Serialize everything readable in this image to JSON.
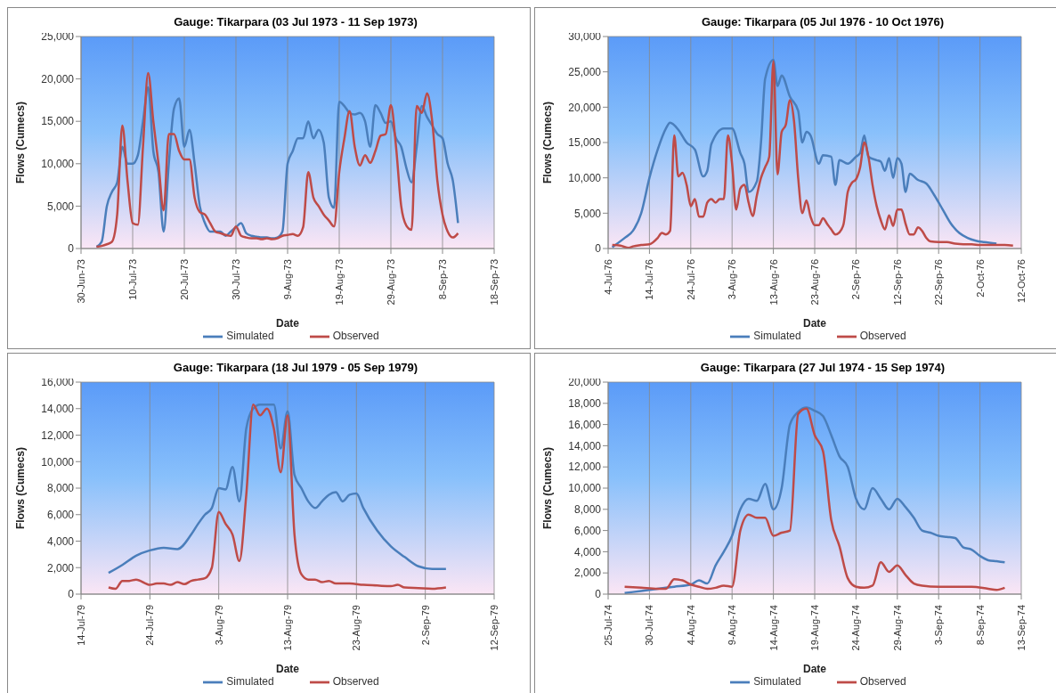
{
  "chart_data": [
    {
      "type": "line",
      "title": "Gauge: Tikarpara (03 Jul 1973 - 11 Sep 1973)",
      "xlabel": "Date",
      "ylabel": "Flows (Cumecs)",
      "grid": true,
      "legend": "bottom",
      "marker": "none",
      "line_style": "solid",
      "xlim": [
        "1973-06-30",
        "1973-09-18"
      ],
      "xticks": [
        {
          "value": "1973-06-30",
          "label": "30-Jun-73"
        },
        {
          "value": "1973-07-10",
          "label": "10-Jul-73"
        },
        {
          "value": "1973-07-20",
          "label": "20-Jul-73"
        },
        {
          "value": "1973-07-30",
          "label": "30-Jul-73"
        },
        {
          "value": "1973-08-09",
          "label": "9-Aug-73"
        },
        {
          "value": "1973-08-19",
          "label": "19-Aug-73"
        },
        {
          "value": "1973-08-29",
          "label": "29-Aug-73"
        },
        {
          "value": "1973-09-08",
          "label": "8-Sep-73"
        },
        {
          "value": "1973-09-18",
          "label": "18-Sep-73"
        }
      ],
      "ylim": [
        0,
        25000
      ],
      "yticks": [
        {
          "value": 0,
          "label": "0"
        },
        {
          "value": 5000,
          "label": "5,000"
        },
        {
          "value": 10000,
          "label": "10,000"
        },
        {
          "value": 15000,
          "label": "15,000"
        },
        {
          "value": 20000,
          "label": "20,000"
        },
        {
          "value": 25000,
          "label": "25,000"
        }
      ],
      "series": [
        {
          "name": "Simulated",
          "color": "#4a7ebb",
          "x": [
            "1973-07-03",
            "1973-07-04",
            "1973-07-05",
            "1973-07-06",
            "1973-07-07",
            "1973-07-08",
            "1973-07-09",
            "1973-07-10",
            "1973-07-11",
            "1973-07-12",
            "1973-07-13",
            "1973-07-14",
            "1973-07-15",
            "1973-07-16",
            "1973-07-17",
            "1973-07-18",
            "1973-07-19",
            "1973-07-20",
            "1973-07-21",
            "1973-07-22",
            "1973-07-23",
            "1973-07-24",
            "1973-07-25",
            "1973-07-26",
            "1973-07-27",
            "1973-07-28",
            "1973-07-29",
            "1973-07-30",
            "1973-07-31",
            "1973-08-01",
            "1973-08-02",
            "1973-08-03",
            "1973-08-04",
            "1973-08-05",
            "1973-08-06",
            "1973-08-07",
            "1973-08-08",
            "1973-08-09",
            "1973-08-10",
            "1973-08-11",
            "1973-08-12",
            "1973-08-13",
            "1973-08-14",
            "1973-08-15",
            "1973-08-16",
            "1973-08-17",
            "1973-08-18",
            "1973-08-19",
            "1973-08-20",
            "1973-08-21",
            "1973-08-22",
            "1973-08-23",
            "1973-08-24",
            "1973-08-25",
            "1973-08-26",
            "1973-08-27",
            "1973-08-28",
            "1973-08-29",
            "1973-08-30",
            "1973-08-31",
            "1973-09-01",
            "1973-09-02",
            "1973-09-03",
            "1973-09-04",
            "1973-09-05",
            "1973-09-06",
            "1973-09-07",
            "1973-09-08",
            "1973-09-09",
            "1973-09-10",
            "1973-09-11"
          ],
          "values": [
            200,
            800,
            5000,
            6700,
            7800,
            12000,
            10000,
            10000,
            11000,
            15000,
            19000,
            11500,
            9000,
            2000,
            10000,
            16500,
            17700,
            12000,
            14000,
            10000,
            5000,
            3000,
            2000,
            2000,
            2000,
            1500,
            2000,
            2500,
            3000,
            1800,
            1500,
            1400,
            1300,
            1300,
            1200,
            1300,
            2000,
            10000,
            11500,
            13000,
            13000,
            15000,
            13000,
            14000,
            12500,
            6000,
            4800,
            17300,
            16800,
            16000,
            15800,
            16000,
            15000,
            12000,
            16900,
            16000,
            14800,
            15000,
            13000,
            12000,
            9500,
            7800,
            12000,
            16800,
            15500,
            14500,
            13500,
            13000,
            10000,
            8000,
            3000
          ]
        },
        {
          "name": "Observed",
          "color": "#be4b48",
          "x": [
            "1973-07-03",
            "1973-07-04",
            "1973-07-05",
            "1973-07-06",
            "1973-07-07",
            "1973-07-08",
            "1973-07-09",
            "1973-07-10",
            "1973-07-11",
            "1973-07-12",
            "1973-07-13",
            "1973-07-14",
            "1973-07-15",
            "1973-07-16",
            "1973-07-17",
            "1973-07-18",
            "1973-07-19",
            "1973-07-20",
            "1973-07-21",
            "1973-07-22",
            "1973-07-23",
            "1973-07-24",
            "1973-07-25",
            "1973-07-26",
            "1973-07-27",
            "1973-07-28",
            "1973-07-29",
            "1973-07-30",
            "1973-07-31",
            "1973-08-01",
            "1973-08-02",
            "1973-08-03",
            "1973-08-04",
            "1973-08-05",
            "1973-08-06",
            "1973-08-07",
            "1973-08-08",
            "1973-08-09",
            "1973-08-10",
            "1973-08-11",
            "1973-08-12",
            "1973-08-13",
            "1973-08-14",
            "1973-08-15",
            "1973-08-16",
            "1973-08-17",
            "1973-08-18",
            "1973-08-19",
            "1973-08-20",
            "1973-08-21",
            "1973-08-22",
            "1973-08-23",
            "1973-08-24",
            "1973-08-25",
            "1973-08-26",
            "1973-08-27",
            "1973-08-28",
            "1973-08-29",
            "1973-08-30",
            "1973-08-31",
            "1973-09-01",
            "1973-09-02",
            "1973-09-03",
            "1973-09-04",
            "1973-09-05",
            "1973-09-06",
            "1973-09-07",
            "1973-09-08",
            "1973-09-09",
            "1973-09-10",
            "1973-09-11"
          ],
          "values": [
            200,
            300,
            500,
            800,
            4000,
            14500,
            8000,
            3000,
            2800,
            12000,
            20700,
            15000,
            10000,
            4500,
            13500,
            13500,
            11500,
            10500,
            10500,
            6000,
            4300,
            4000,
            3000,
            2000,
            1800,
            1600,
            1500,
            2600,
            1500,
            1300,
            1200,
            1200,
            1100,
            1200,
            1100,
            1200,
            1500,
            1600,
            1700,
            1500,
            2500,
            9000,
            6000,
            5000,
            4000,
            3300,
            2600,
            9000,
            13000,
            16200,
            12000,
            9800,
            11000,
            10100,
            11500,
            13300,
            13500,
            16900,
            12000,
            5000,
            2700,
            2200,
            16800,
            16000,
            18300,
            15000,
            8000,
            4000,
            2000,
            1300,
            1800
          ]
        }
      ]
    },
    {
      "type": "line",
      "title": "Gauge: Tikarpara (05 Jul 1976 - 10 Oct 1976)",
      "xlabel": "Date",
      "ylabel": "Flows (Cumecs)",
      "grid": true,
      "legend": "bottom",
      "marker": "none",
      "line_style": "solid",
      "xlim": [
        "1976-07-04",
        "1976-10-12"
      ],
      "xticks": [
        {
          "value": "1976-07-04",
          "label": "4-Jul-76"
        },
        {
          "value": "1976-07-14",
          "label": "14-Jul-76"
        },
        {
          "value": "1976-07-24",
          "label": "24-Jul-76"
        },
        {
          "value": "1976-08-03",
          "label": "3-Aug-76"
        },
        {
          "value": "1976-08-13",
          "label": "13-Aug-76"
        },
        {
          "value": "1976-08-23",
          "label": "23-Aug-76"
        },
        {
          "value": "1976-09-02",
          "label": "2-Sep-76"
        },
        {
          "value": "1976-09-12",
          "label": "12-Sep-76"
        },
        {
          "value": "1976-09-22",
          "label": "22-Sep-76"
        },
        {
          "value": "1976-10-02",
          "label": "2-Oct-76"
        },
        {
          "value": "1976-10-12",
          "label": "12-Oct-76"
        }
      ],
      "ylim": [
        0,
        30000
      ],
      "yticks": [
        {
          "value": 0,
          "label": "0"
        },
        {
          "value": 5000,
          "label": "5,000"
        },
        {
          "value": 10000,
          "label": "10,000"
        },
        {
          "value": 15000,
          "label": "15,000"
        },
        {
          "value": 20000,
          "label": "20,000"
        },
        {
          "value": 25000,
          "label": "25,000"
        },
        {
          "value": 30000,
          "label": "30,000"
        }
      ],
      "series": [
        {
          "name": "Simulated",
          "color": "#4a7ebb",
          "x": [
            "1976-07-05",
            "1976-07-08",
            "1976-07-10",
            "1976-07-12",
            "1976-07-14",
            "1976-07-16",
            "1976-07-18",
            "1976-07-19",
            "1976-07-21",
            "1976-07-23",
            "1976-07-25",
            "1976-07-27",
            "1976-07-28",
            "1976-07-29",
            "1976-08-01",
            "1976-08-03",
            "1976-08-05",
            "1976-08-06",
            "1976-08-07",
            "1976-08-09",
            "1976-08-10",
            "1976-08-11",
            "1976-08-13",
            "1976-08-14",
            "1976-08-15",
            "1976-08-17",
            "1976-08-19",
            "1976-08-20",
            "1976-08-21",
            "1976-08-22",
            "1976-08-24",
            "1976-08-25",
            "1976-08-27",
            "1976-08-28",
            "1976-08-29",
            "1976-08-31",
            "1976-09-02",
            "1976-09-03",
            "1976-09-04",
            "1976-09-05",
            "1976-09-07",
            "1976-09-08",
            "1976-09-09",
            "1976-09-10",
            "1976-09-11",
            "1976-09-12",
            "1976-09-13",
            "1976-09-14",
            "1976-09-15",
            "1976-09-17",
            "1976-09-19",
            "1976-09-21",
            "1976-09-23",
            "1976-09-25",
            "1976-09-27",
            "1976-09-29",
            "1976-10-01",
            "1976-10-03",
            "1976-10-06"
          ],
          "values": [
            200,
            1500,
            2500,
            5000,
            10000,
            14000,
            17000,
            17800,
            16800,
            15000,
            14000,
            10200,
            11000,
            14800,
            17000,
            17000,
            13500,
            12000,
            8000,
            9500,
            15000,
            24000,
            26700,
            23000,
            24500,
            21500,
            19500,
            15000,
            16500,
            16000,
            12000,
            13200,
            13000,
            9000,
            12500,
            12000,
            13000,
            13500,
            16000,
            13000,
            12500,
            12300,
            11000,
            12800,
            10000,
            12800,
            12000,
            8000,
            10600,
            9700,
            9200,
            7500,
            5500,
            3500,
            2200,
            1500,
            1100,
            900,
            700
          ]
        },
        {
          "name": "Observed",
          "color": "#be4b48",
          "x": [
            "1976-07-05",
            "1976-07-07",
            "1976-07-09",
            "1976-07-10",
            "1976-07-12",
            "1976-07-14",
            "1976-07-16",
            "1976-07-17",
            "1976-07-18",
            "1976-07-19",
            "1976-07-20",
            "1976-07-21",
            "1976-07-22",
            "1976-07-23",
            "1976-07-24",
            "1976-07-25",
            "1976-07-26",
            "1976-07-27",
            "1976-07-28",
            "1976-07-29",
            "1976-07-30",
            "1976-07-31",
            "1976-08-01",
            "1976-08-02",
            "1976-08-03",
            "1976-08-04",
            "1976-08-05",
            "1976-08-06",
            "1976-08-07",
            "1976-08-08",
            "1976-08-09",
            "1976-08-10",
            "1976-08-11",
            "1976-08-12",
            "1976-08-13",
            "1976-08-14",
            "1976-08-15",
            "1976-08-16",
            "1976-08-17",
            "1976-08-18",
            "1976-08-19",
            "1976-08-20",
            "1976-08-21",
            "1976-08-22",
            "1976-08-23",
            "1976-08-24",
            "1976-08-25",
            "1976-08-26",
            "1976-08-27",
            "1976-08-28",
            "1976-08-29",
            "1976-08-30",
            "1976-08-31",
            "1976-09-01",
            "1976-09-02",
            "1976-09-03",
            "1976-09-04",
            "1976-09-05",
            "1976-09-06",
            "1976-09-07",
            "1976-09-08",
            "1976-09-09",
            "1976-09-10",
            "1976-09-11",
            "1976-09-12",
            "1976-09-13",
            "1976-09-14",
            "1976-09-15",
            "1976-09-16",
            "1976-09-17",
            "1976-09-18",
            "1976-09-19",
            "1976-09-20",
            "1976-09-22",
            "1976-09-24",
            "1976-09-26",
            "1976-09-28",
            "1976-09-30",
            "1976-10-02",
            "1976-10-04",
            "1976-10-06",
            "1976-10-08",
            "1976-10-10"
          ],
          "values": [
            500,
            400,
            100,
            300,
            500,
            600,
            1500,
            2200,
            2000,
            2500,
            16000,
            10200,
            10700,
            9000,
            6000,
            7000,
            4500,
            4500,
            6500,
            7000,
            6500,
            7000,
            7000,
            16000,
            12000,
            5500,
            8500,
            9000,
            6500,
            4600,
            7500,
            10000,
            11500,
            13000,
            26500,
            10500,
            16500,
            17500,
            21000,
            18000,
            10000,
            5000,
            6800,
            4500,
            3300,
            3300,
            4300,
            3500,
            2700,
            2000,
            2300,
            3500,
            8000,
            9300,
            9800,
            11500,
            15000,
            13000,
            9000,
            6000,
            4000,
            2700,
            4700,
            3200,
            5500,
            5500,
            3500,
            2000,
            2000,
            3000,
            2500,
            1500,
            1000,
            900,
            900,
            700,
            600,
            600,
            500,
            500,
            500,
            500,
            400
          ]
        }
      ]
    },
    {
      "type": "line",
      "title": "Gauge: Tikarpara (18 Jul 1979 - 05 Sep 1979)",
      "xlabel": "Date",
      "ylabel": "Flows (Cumecs)",
      "grid": true,
      "legend": "bottom",
      "marker": "none",
      "line_style": "solid",
      "xlim": [
        "1979-07-14",
        "1979-09-12"
      ],
      "xticks": [
        {
          "value": "1979-07-14",
          "label": "14-Jul-79"
        },
        {
          "value": "1979-07-24",
          "label": "24-Jul-79"
        },
        {
          "value": "1979-08-03",
          "label": "3-Aug-79"
        },
        {
          "value": "1979-08-13",
          "label": "13-Aug-79"
        },
        {
          "value": "1979-08-23",
          "label": "23-Aug-79"
        },
        {
          "value": "1979-09-02",
          "label": "2-Sep-79"
        },
        {
          "value": "1979-09-12",
          "label": "12-Sep-79"
        }
      ],
      "ylim": [
        0,
        16000
      ],
      "yticks": [
        {
          "value": 0,
          "label": "0"
        },
        {
          "value": 2000,
          "label": "2,000"
        },
        {
          "value": 4000,
          "label": "4,000"
        },
        {
          "value": 6000,
          "label": "6,000"
        },
        {
          "value": 8000,
          "label": "8,000"
        },
        {
          "value": 10000,
          "label": "10,000"
        },
        {
          "value": 12000,
          "label": "12,000"
        },
        {
          "value": 14000,
          "label": "14,000"
        },
        {
          "value": 16000,
          "label": "16,000"
        }
      ],
      "series": [
        {
          "name": "Simulated",
          "color": "#4a7ebb",
          "x": [
            "1979-07-18",
            "1979-07-20",
            "1979-07-22",
            "1979-07-24",
            "1979-07-26",
            "1979-07-28",
            "1979-07-30",
            "1979-07-31",
            "1979-08-01",
            "1979-08-02",
            "1979-08-03",
            "1979-08-04",
            "1979-08-05",
            "1979-08-06",
            "1979-08-07",
            "1979-08-08",
            "1979-08-09",
            "1979-08-10",
            "1979-08-11",
            "1979-08-12",
            "1979-08-13",
            "1979-08-14",
            "1979-08-15",
            "1979-08-16",
            "1979-08-17",
            "1979-08-18",
            "1979-08-19",
            "1979-08-20",
            "1979-08-21",
            "1979-08-22",
            "1979-08-23",
            "1979-08-24",
            "1979-08-26",
            "1979-08-28",
            "1979-08-30",
            "1979-09-01",
            "1979-09-03",
            "1979-09-05"
          ],
          "values": [
            1600,
            2200,
            2900,
            3300,
            3500,
            3400,
            4500,
            5300,
            6000,
            6500,
            8000,
            7900,
            9600,
            7000,
            12500,
            14000,
            14300,
            14300,
            14300,
            11000,
            13800,
            9000,
            8000,
            7000,
            6500,
            7000,
            7500,
            7700,
            7000,
            7500,
            7600,
            6500,
            4800,
            3600,
            2800,
            2100,
            1900,
            1900
          ]
        },
        {
          "name": "Observed",
          "color": "#be4b48",
          "x": [
            "1979-07-18",
            "1979-07-19",
            "1979-07-20",
            "1979-07-21",
            "1979-07-22",
            "1979-07-24",
            "1979-07-25",
            "1979-07-26",
            "1979-07-27",
            "1979-07-28",
            "1979-07-29",
            "1979-07-30",
            "1979-07-31",
            "1979-08-01",
            "1979-08-02",
            "1979-08-03",
            "1979-08-04",
            "1979-08-05",
            "1979-08-06",
            "1979-08-07",
            "1979-08-08",
            "1979-08-09",
            "1979-08-10",
            "1979-08-11",
            "1979-08-12",
            "1979-08-13",
            "1979-08-14",
            "1979-08-15",
            "1979-08-16",
            "1979-08-17",
            "1979-08-18",
            "1979-08-19",
            "1979-08-20",
            "1979-08-22",
            "1979-08-24",
            "1979-08-26",
            "1979-08-28",
            "1979-08-29",
            "1979-08-30",
            "1979-09-01",
            "1979-09-03",
            "1979-09-05"
          ],
          "values": [
            500,
            400,
            1000,
            1000,
            1100,
            700,
            800,
            800,
            700,
            900,
            750,
            1000,
            1100,
            1200,
            2000,
            6200,
            5300,
            4500,
            2500,
            7500,
            14300,
            13500,
            14000,
            12500,
            9200,
            13500,
            4500,
            1500,
            1100,
            1100,
            900,
            1000,
            800,
            800,
            700,
            650,
            600,
            700,
            500,
            450,
            400,
            500
          ]
        }
      ]
    },
    {
      "type": "line",
      "title": "Gauge: Tikarpara (27 Jul 1974 - 15 Sep 1974)",
      "xlabel": "Date",
      "ylabel": "Flows (Cumecs)",
      "grid": true,
      "legend": "bottom",
      "marker": "none",
      "line_style": "solid",
      "xlim": [
        "1974-07-25",
        "1974-09-13"
      ],
      "xticks": [
        {
          "value": "1974-07-25",
          "label": "25-Jul-74"
        },
        {
          "value": "1974-07-30",
          "label": "30-Jul-74"
        },
        {
          "value": "1974-08-04",
          "label": "4-Aug-74"
        },
        {
          "value": "1974-08-09",
          "label": "9-Aug-74"
        },
        {
          "value": "1974-08-14",
          "label": "14-Aug-74"
        },
        {
          "value": "1974-08-19",
          "label": "19-Aug-74"
        },
        {
          "value": "1974-08-24",
          "label": "24-Aug-74"
        },
        {
          "value": "1974-08-29",
          "label": "29-Aug-74"
        },
        {
          "value": "1974-09-03",
          "label": "3-Sep-74"
        },
        {
          "value": "1974-09-08",
          "label": "8-Sep-74"
        },
        {
          "value": "1974-09-13",
          "label": "13-Sep-74"
        }
      ],
      "ylim": [
        0,
        20000
      ],
      "yticks": [
        {
          "value": 0,
          "label": "0"
        },
        {
          "value": 2000,
          "label": "2,000"
        },
        {
          "value": 4000,
          "label": "4,000"
        },
        {
          "value": 6000,
          "label": "6,000"
        },
        {
          "value": 8000,
          "label": "8,000"
        },
        {
          "value": 10000,
          "label": "10,000"
        },
        {
          "value": 12000,
          "label": "12,000"
        },
        {
          "value": 14000,
          "label": "14,000"
        },
        {
          "value": 16000,
          "label": "16,000"
        },
        {
          "value": 18000,
          "label": "18,000"
        },
        {
          "value": 20000,
          "label": "20,000"
        }
      ],
      "series": [
        {
          "name": "Simulated",
          "color": "#4a7ebb",
          "x": [
            "1974-07-27",
            "1974-07-29",
            "1974-07-31",
            "1974-08-02",
            "1974-08-04",
            "1974-08-05",
            "1974-08-06",
            "1974-08-07",
            "1974-08-08",
            "1974-08-09",
            "1974-08-10",
            "1974-08-11",
            "1974-08-12",
            "1974-08-13",
            "1974-08-14",
            "1974-08-15",
            "1974-08-16",
            "1974-08-17",
            "1974-08-18",
            "1974-08-19",
            "1974-08-20",
            "1974-08-21",
            "1974-08-22",
            "1974-08-23",
            "1974-08-24",
            "1974-08-25",
            "1974-08-26",
            "1974-08-27",
            "1974-08-28",
            "1974-08-29",
            "1974-08-30",
            "1974-08-31",
            "1974-09-01",
            "1974-09-02",
            "1974-09-03",
            "1974-09-04",
            "1974-09-05",
            "1974-09-06",
            "1974-09-07",
            "1974-09-08",
            "1974-09-09",
            "1974-09-10",
            "1974-09-11"
          ],
          "values": [
            100,
            300,
            500,
            700,
            900,
            1300,
            1000,
            2700,
            4000,
            5500,
            8000,
            9000,
            8800,
            10400,
            8000,
            10000,
            16000,
            17200,
            17600,
            17300,
            16800,
            15000,
            13000,
            12000,
            9000,
            8000,
            10000,
            9000,
            8000,
            9000,
            8200,
            7200,
            6000,
            5800,
            5500,
            5400,
            5300,
            4400,
            4200,
            3600,
            3200,
            3100,
            3000
          ]
        },
        {
          "name": "Observed",
          "color": "#be4b48",
          "x": [
            "1974-07-27",
            "1974-07-29",
            "1974-07-31",
            "1974-08-01",
            "1974-08-02",
            "1974-08-03",
            "1974-08-04",
            "1974-08-05",
            "1974-08-06",
            "1974-08-07",
            "1974-08-08",
            "1974-08-09",
            "1974-08-10",
            "1974-08-11",
            "1974-08-12",
            "1974-08-13",
            "1974-08-14",
            "1974-08-15",
            "1974-08-16",
            "1974-08-17",
            "1974-08-18",
            "1974-08-19",
            "1974-08-20",
            "1974-08-21",
            "1974-08-22",
            "1974-08-23",
            "1974-08-24",
            "1974-08-25",
            "1974-08-26",
            "1974-08-27",
            "1974-08-28",
            "1974-08-29",
            "1974-08-30",
            "1974-08-31",
            "1974-09-01",
            "1974-09-03",
            "1974-09-05",
            "1974-09-07",
            "1974-09-09",
            "1974-09-10",
            "1974-09-11"
          ],
          "values": [
            700,
            600,
            500,
            500,
            1400,
            1300,
            900,
            700,
            500,
            600,
            800,
            700,
            6000,
            7500,
            7200,
            7200,
            5500,
            5800,
            6000,
            17000,
            17500,
            15000,
            13500,
            7000,
            4500,
            1500,
            700,
            600,
            800,
            3000,
            2100,
            2700,
            1800,
            1000,
            800,
            700,
            700,
            700,
            500,
            400,
            600
          ]
        }
      ]
    }
  ]
}
